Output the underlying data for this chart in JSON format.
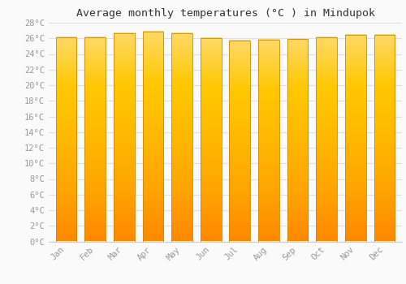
{
  "title": "Average monthly temperatures (°C ) in Mindupok",
  "months": [
    "Jan",
    "Feb",
    "Mar",
    "Apr",
    "May",
    "Jun",
    "Jul",
    "Aug",
    "Sep",
    "Oct",
    "Nov",
    "Dec"
  ],
  "values": [
    26.1,
    26.1,
    26.7,
    26.9,
    26.7,
    26.0,
    25.7,
    25.8,
    25.9,
    26.1,
    26.4,
    26.4
  ],
  "bar_color_top": "#FFD966",
  "bar_color_mid": "#FFA500",
  "bar_color_bottom": "#FF8C00",
  "bar_edge_color": "#CC8800",
  "ylim": [
    0,
    28
  ],
  "ytick_step": 2,
  "background_color": "#FAFAFA",
  "grid_color": "#E0E0E0",
  "title_fontsize": 9.5,
  "tick_fontsize": 7.5,
  "tick_color": "#999999",
  "font_family": "monospace",
  "bar_width": 0.72
}
